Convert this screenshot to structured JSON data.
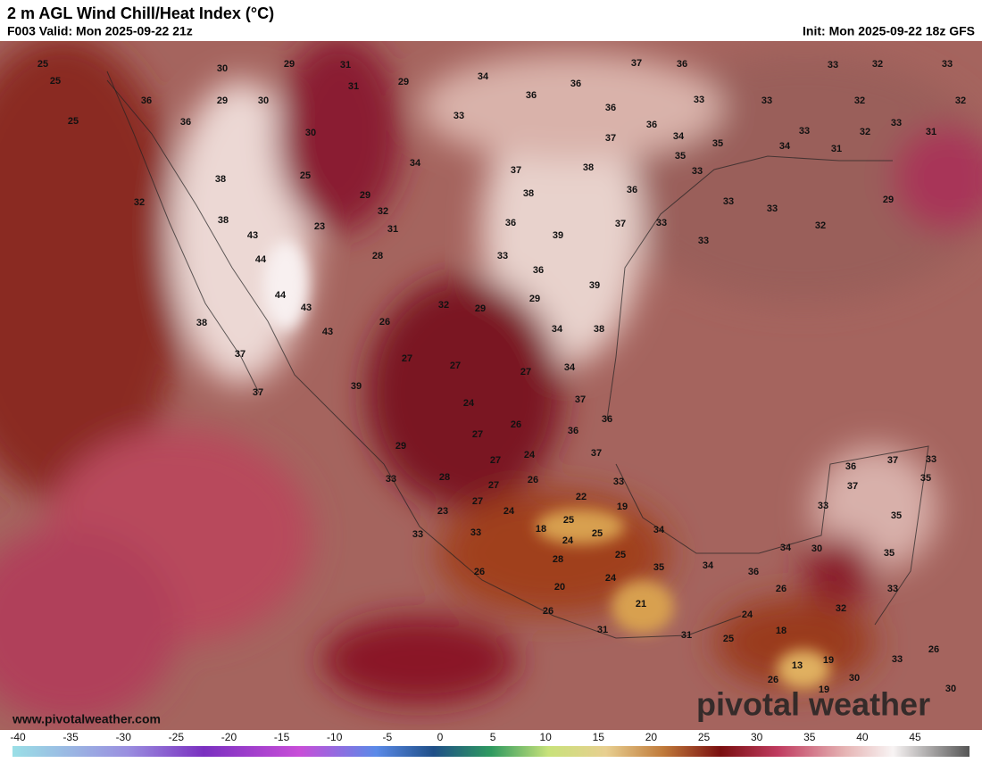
{
  "header": {
    "title": "2 m AGL Wind Chill/Heat Index (°C)",
    "valid": "F003 Valid: Mon 2025-09-22 21z",
    "init": "Init: Mon 2025-09-22 18z GFS"
  },
  "map": {
    "labels": [
      25,
      25,
      25,
      30,
      29,
      31,
      31,
      29,
      29,
      30,
      34,
      37,
      36,
      33,
      32,
      33,
      36,
      36,
      33,
      33,
      32,
      32,
      36,
      36,
      33,
      36,
      36,
      34,
      33,
      33,
      32,
      31,
      30,
      37,
      35,
      34,
      31,
      35,
      33,
      34,
      37,
      38,
      25,
      38,
      29,
      38,
      36,
      33,
      33,
      29,
      32,
      32,
      38,
      31,
      36,
      37,
      33,
      32,
      23,
      43,
      39,
      33,
      44,
      28,
      33,
      36,
      39,
      44,
      43,
      32,
      29,
      29,
      38,
      26,
      43,
      34,
      38,
      37,
      27,
      27,
      27,
      34,
      37,
      39,
      24,
      37,
      36,
      26,
      27,
      36,
      29,
      24,
      37,
      27,
      36,
      37,
      33,
      33,
      28,
      26,
      27,
      33,
      37,
      35,
      22,
      27,
      23,
      24,
      19,
      33,
      35,
      25,
      18,
      33,
      33,
      25,
      34,
      24,
      34,
      30,
      35,
      28,
      25,
      35,
      34,
      36,
      26,
      24,
      20,
      26,
      33,
      32,
      21,
      26,
      24,
      18,
      31,
      31,
      25,
      13,
      19,
      33,
      26,
      30,
      26,
      19,
      30
    ]
  },
  "footer": {
    "website": "www.pivotalweather.com",
    "logo": "pivotal weather"
  },
  "colorbar": {
    "ticks": [
      -40,
      -35,
      -30,
      -25,
      -20,
      -15,
      -10,
      -5,
      0,
      5,
      10,
      15,
      20,
      25,
      30,
      35,
      40,
      45
    ]
  }
}
